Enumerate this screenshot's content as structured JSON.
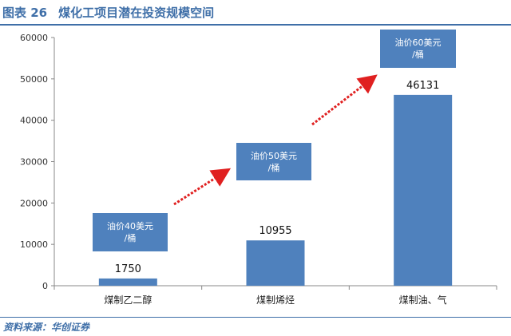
{
  "header": {
    "figure_label": "图表 26",
    "title": "煤化工项目潜在投资规模空间"
  },
  "source": "资料来源：华创证券",
  "callouts": [
    {
      "line1": "油价40美元",
      "line2": "/桶"
    },
    {
      "line1": "油价50美元",
      "line2": "/桶"
    },
    {
      "line1": "油价60美元",
      "line2": "/桶"
    }
  ],
  "colors": {
    "bar": "#4f81bd",
    "arrow": "#e02020",
    "accent": "#3f6fa8"
  },
  "chart_data": {
    "type": "bar",
    "categories": [
      "煤制乙二醇",
      "煤制烯烃",
      "煤制油、气"
    ],
    "values": [
      1750,
      10955,
      46131
    ],
    "data_labels": [
      "1750",
      "10955",
      "46131"
    ],
    "y_ticks": [
      0,
      10000,
      20000,
      30000,
      40000,
      50000,
      60000
    ],
    "ylim": [
      0,
      60000
    ],
    "xlabel": "",
    "ylabel": "",
    "grid": false,
    "legend": "none"
  }
}
